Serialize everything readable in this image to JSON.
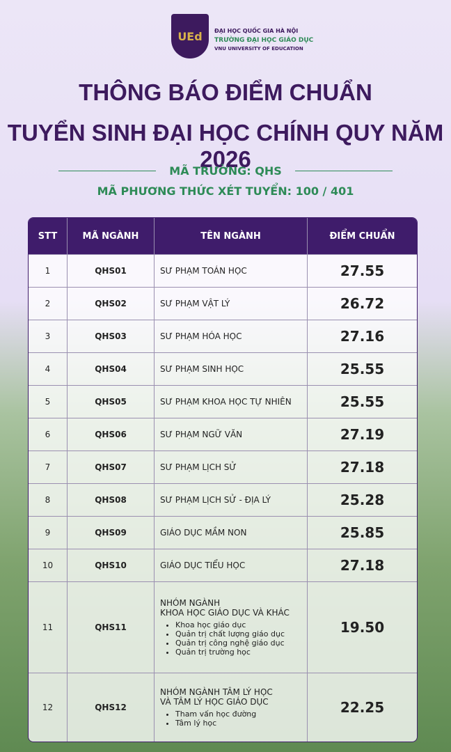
{
  "header": {
    "logo_mark": "UEd",
    "university": "ĐẠI HỌC QUỐC GIA HÀ NỘI",
    "school": "TRƯỜNG ĐẠI HỌC GIÁO DỤC",
    "school_en": "VNU UNIVERSITY OF EDUCATION"
  },
  "title": [
    "THÔNG BÁO ĐIỂM CHUẨN",
    "TUYỂN SINH ĐẠI HỌC CHÍNH QUY NĂM 2026"
  ],
  "school_code": "MÃ TRƯỜNG: QHS",
  "method_code": "MÃ PHƯƠNG THỨC XÉT TUYỂN: 100 / 401",
  "table": {
    "columns": [
      "STT",
      "MÃ NGÀNH",
      "TÊN NGÀNH",
      "ĐIỂM CHUẨN"
    ],
    "rows": [
      {
        "stt": "1",
        "code": "QHS01",
        "name": [
          "SƯ PHẠM TOÁN HỌC"
        ],
        "score": "27.55"
      },
      {
        "stt": "2",
        "code": "QHS02",
        "name": [
          "SƯ PHẠM VẬT LÝ"
        ],
        "score": "26.72"
      },
      {
        "stt": "3",
        "code": "QHS03",
        "name": [
          "SƯ PHẠM HÓA HỌC"
        ],
        "score": "27.16"
      },
      {
        "stt": "4",
        "code": "QHS04",
        "name": [
          "SƯ PHẠM SINH HỌC"
        ],
        "score": "25.55"
      },
      {
        "stt": "5",
        "code": "QHS05",
        "name": [
          "SƯ PHẠM KHOA HỌC TỰ NHIÊN"
        ],
        "score": "25.55"
      },
      {
        "stt": "6",
        "code": "QHS06",
        "name": [
          "SƯ PHẠM NGỮ VĂN"
        ],
        "score": "27.19"
      },
      {
        "stt": "7",
        "code": "QHS07",
        "name": [
          "SƯ PHẠM LỊCH SỬ"
        ],
        "score": "27.18"
      },
      {
        "stt": "8",
        "code": "QHS08",
        "name": [
          "SƯ PHẠM LỊCH SỬ - ĐỊA LÝ"
        ],
        "score": "25.28"
      },
      {
        "stt": "9",
        "code": "QHS09",
        "name": [
          "GIÁO DỤC MẦM NON"
        ],
        "score": "25.85"
      },
      {
        "stt": "10",
        "code": "QHS10",
        "name": [
          "GIÁO DỤC TIỂU HỌC"
        ],
        "score": "27.18"
      },
      {
        "stt": "11",
        "code": "QHS11",
        "name": [
          "NHÓM NGÀNH",
          "KHOA HỌC GIÁO DỤC VÀ KHÁC"
        ],
        "items": [
          "Khoa học giáo dục",
          "Quản trị chất lượng giáo dục",
          "Quản trị công nghệ giáo dục",
          "Quản trị trường học"
        ],
        "score": "19.50"
      },
      {
        "stt": "12",
        "code": "QHS12",
        "name": [
          "NHÓM NGÀNH TÂM LÝ HỌC",
          "VÀ TÂM LÝ HỌC GIÁO DỤC"
        ],
        "items": [
          "Tham vấn học đường",
          "Tâm lý học"
        ],
        "score": "22.25"
      }
    ]
  }
}
